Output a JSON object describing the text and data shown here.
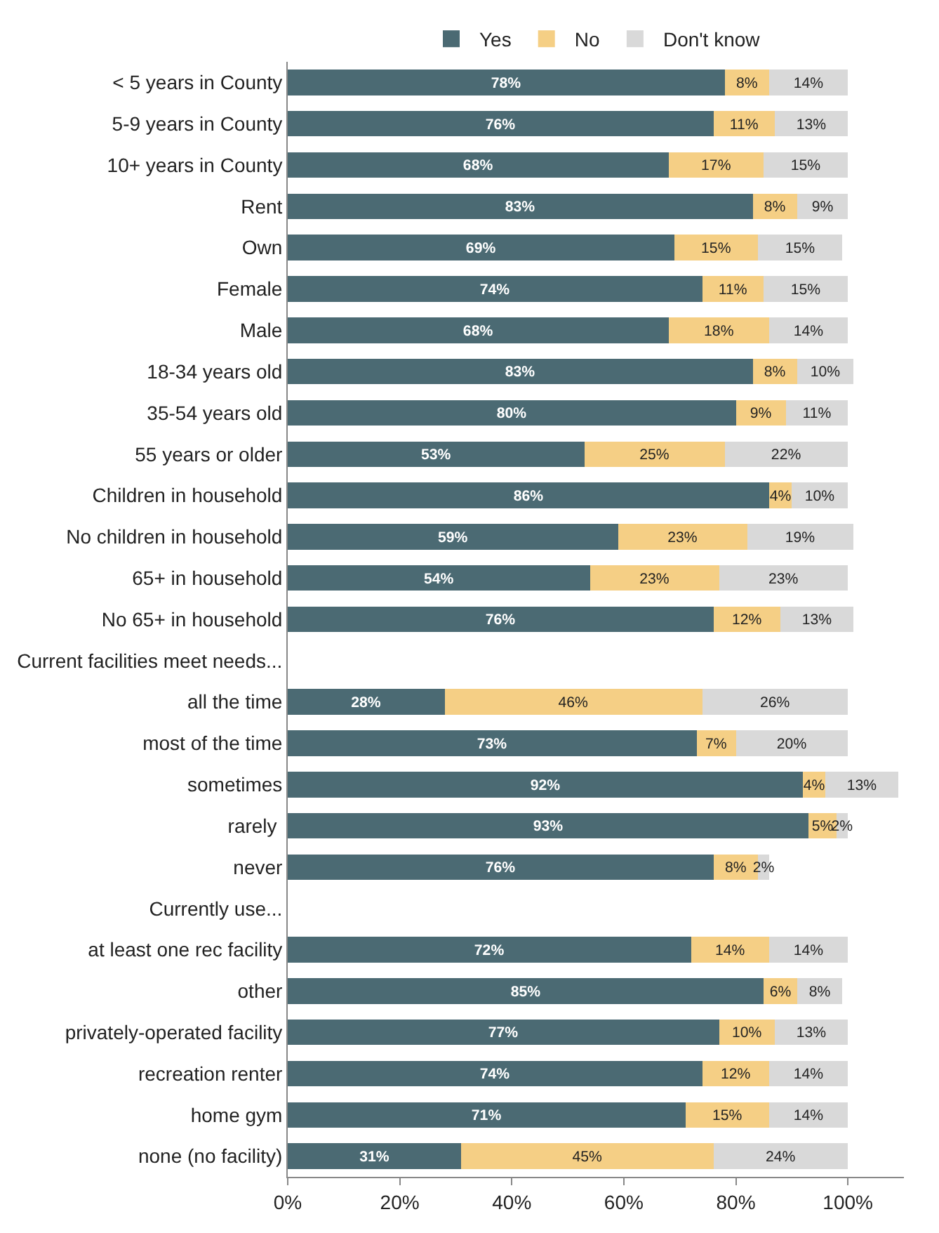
{
  "chart_data": {
    "type": "bar",
    "orientation": "horizontal",
    "stacked": true,
    "legend": "top",
    "categories": [
      "< 5 years in County",
      "5-9 years in County",
      "10+ years in County",
      "Rent",
      "Own",
      "Female",
      "Male",
      "18-34 years old",
      "35-54 years old",
      "55 years or older",
      "Children in household",
      "No children in household",
      "65+ in household",
      "No 65+ in household",
      "Current facilities meet needs...",
      "all the time",
      "most of the time",
      "sometimes",
      "rarely ",
      "never",
      "Currently use...",
      "at least one rec facility",
      "other",
      "privately-operated facility",
      "recreation renter",
      "home gym",
      "none (no facility)"
    ],
    "xlim": [
      0,
      110
    ],
    "xticks": [
      {
        "value": 0,
        "label": "0%"
      },
      {
        "value": 20,
        "label": "20%"
      },
      {
        "value": 40,
        "label": "40%"
      },
      {
        "value": 60,
        "label": "60%"
      },
      {
        "value": 80,
        "label": "80%"
      },
      {
        "value": 100,
        "label": "100%"
      }
    ],
    "series": [
      {
        "name": "Yes",
        "color": "#4b6a73",
        "values": [
          78,
          76,
          68,
          83,
          69,
          74,
          68,
          83,
          80,
          53,
          86,
          59,
          54,
          76,
          null,
          28,
          73,
          92,
          93,
          76,
          null,
          72,
          85,
          77,
          74,
          71,
          31
        ],
        "value_labels": [
          "78%",
          "76%",
          "68%",
          "83%",
          "69%",
          "74%",
          "68%",
          "83%",
          "80%",
          "53%",
          "86%",
          "59%",
          "54%",
          "76%",
          null,
          "28%",
          "73%",
          "92%",
          "93%",
          "76%",
          null,
          "72%",
          "85%",
          "77%",
          "74%",
          "71%",
          "31%"
        ]
      },
      {
        "name": "No",
        "color": "#f5cf85",
        "values": [
          8,
          11,
          17,
          8,
          15,
          11,
          18,
          8,
          9,
          25,
          4,
          23,
          23,
          12,
          null,
          46,
          7,
          4,
          5,
          8,
          null,
          14,
          6,
          10,
          12,
          15,
          45
        ],
        "value_labels": [
          "8%",
          "11%",
          "17%",
          "8%",
          "15%",
          "11%",
          "18%",
          "8%",
          "9%",
          "25%",
          "4%",
          "23%",
          "23%",
          "12%",
          null,
          "46%",
          "7%",
          "4%",
          "5%",
          "8%",
          null,
          "14%",
          "6%",
          "10%",
          "12%",
          "15%",
          "45%"
        ]
      },
      {
        "name": "Don't know",
        "color": "#d9d9d9",
        "values": [
          14,
          13,
          15,
          9,
          15,
          15,
          14,
          10,
          11,
          22,
          10,
          19,
          23,
          13,
          null,
          26,
          20,
          13,
          2,
          2,
          null,
          14,
          8,
          13,
          14,
          14,
          24
        ],
        "value_labels": [
          "14%",
          "13%",
          "15%",
          "9%",
          "15%",
          "15%",
          "14%",
          "10%",
          "11%",
          "22%",
          "10%",
          "19%",
          "23%",
          "13%",
          null,
          "26%",
          "20%",
          "13%",
          "2%",
          "2%",
          null,
          "14%",
          "8%",
          "13%",
          "14%",
          "14%",
          "24%"
        ]
      }
    ]
  }
}
